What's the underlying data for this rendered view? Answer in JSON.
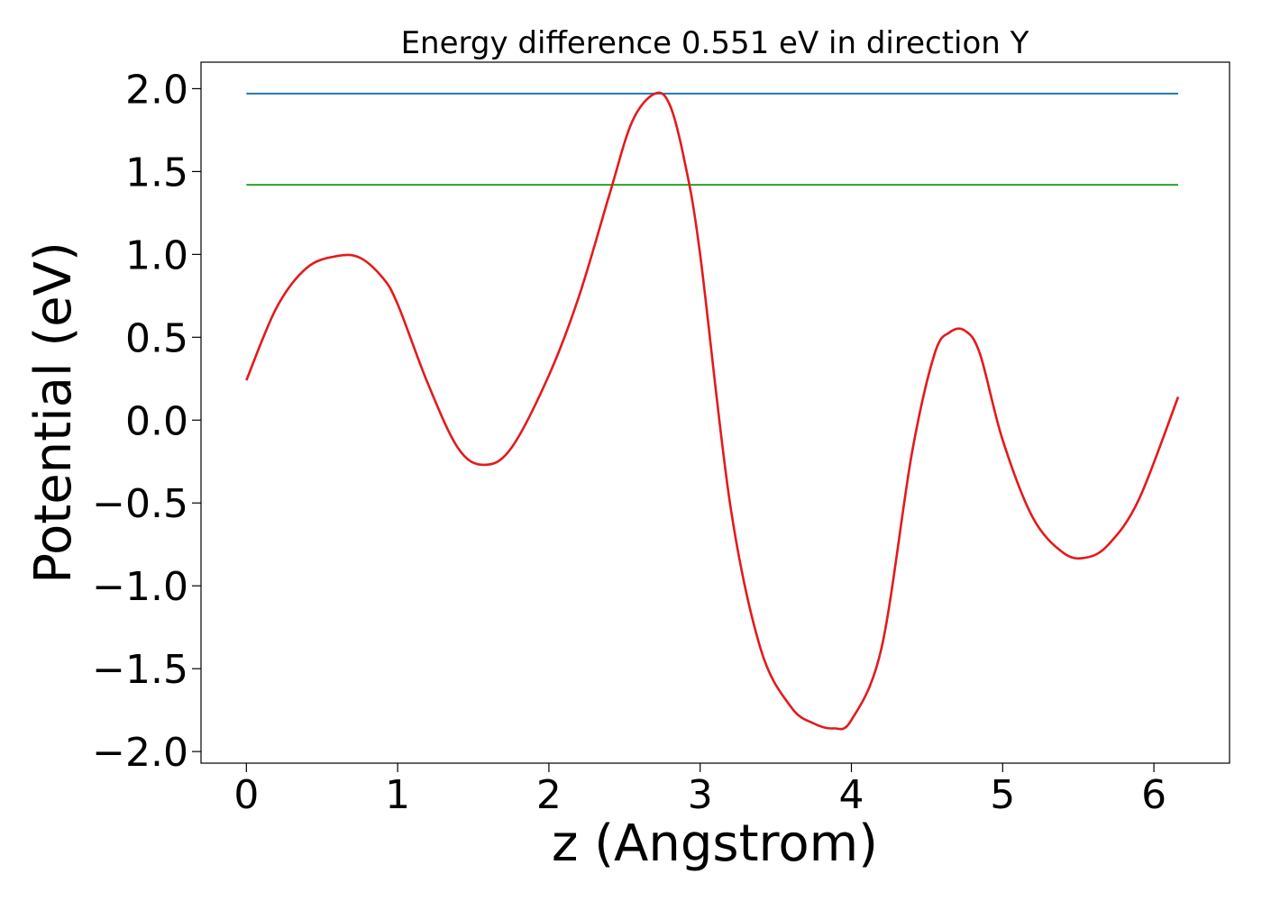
{
  "chart_data": {
    "type": "line",
    "title": "Energy difference 0.551 eV in direction Y",
    "xlabel": "z (Angstrom)",
    "ylabel": "Potential (eV)",
    "xlim": [
      -0.3,
      6.5
    ],
    "ylim": [
      -2.07,
      2.16
    ],
    "xticks": [
      0,
      1,
      2,
      3,
      4,
      5,
      6
    ],
    "xtick_labels": [
      "0",
      "1",
      "2",
      "3",
      "4",
      "5",
      "6"
    ],
    "yticks": [
      -2.0,
      -1.5,
      -1.0,
      -0.5,
      0.0,
      0.5,
      1.0,
      1.5,
      2.0
    ],
    "ytick_labels": [
      "−2.0",
      "−1.5",
      "−1.0",
      "−0.5",
      "0.0",
      "0.5",
      "1.0",
      "1.5",
      "2.0"
    ],
    "grid": false,
    "series": [
      {
        "color": "#1f77b4",
        "x": [
          0.0,
          6.16
        ],
        "y": [
          1.97,
          1.97
        ]
      },
      {
        "color": "#2ca02c",
        "x": [
          0.0,
          6.16
        ],
        "y": [
          1.42,
          1.42
        ]
      },
      {
        "color": "#e31a1c",
        "x": [
          0.0,
          0.2,
          0.4,
          0.6,
          0.75,
          0.9,
          1.0,
          1.2,
          1.4,
          1.57,
          1.75,
          2.0,
          2.2,
          2.4,
          2.55,
          2.7,
          2.8,
          2.9,
          3.0,
          3.2,
          3.4,
          3.6,
          3.75,
          3.88,
          4.0,
          4.2,
          4.4,
          4.55,
          4.65,
          4.75,
          4.85,
          5.0,
          5.2,
          5.4,
          5.55,
          5.7,
          5.9,
          6.16
        ],
        "y": [
          0.24,
          0.68,
          0.92,
          0.99,
          0.98,
          0.86,
          0.7,
          0.22,
          -0.17,
          -0.27,
          -0.17,
          0.27,
          0.75,
          1.36,
          1.8,
          1.97,
          1.9,
          1.55,
          1.0,
          -0.52,
          -1.38,
          -1.73,
          -1.83,
          -1.86,
          -1.81,
          -1.37,
          -0.2,
          0.4,
          0.53,
          0.54,
          0.4,
          -0.12,
          -0.59,
          -0.8,
          -0.83,
          -0.75,
          -0.48,
          0.14
        ]
      }
    ]
  }
}
